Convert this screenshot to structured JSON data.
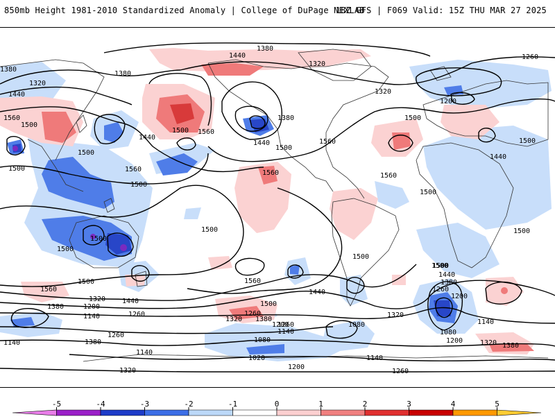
{
  "header": {
    "left_title": "850mb Height 1981-2010 Standardized Anomaly | College of DuPage NEXLAB",
    "right_title": "18Z GFS | F069 Valid: 15Z THU MAR 27 2025"
  },
  "map": {
    "height_labels": [
      "1380",
      "1440",
      "1320",
      "1260",
      "1380",
      "1320",
      "1440",
      "1380",
      "1560",
      "1500",
      "1500",
      "1440",
      "1500",
      "1560",
      "1500",
      "1380",
      "1320",
      "1200",
      "1440",
      "1500",
      "1500",
      "1560",
      "1500",
      "1560",
      "1500",
      "1500",
      "1560",
      "1500",
      "1500",
      "1500",
      "1500",
      "1500",
      "1440",
      "1500",
      "1560",
      "1500",
      "1560",
      "1380",
      "1320",
      "1200",
      "1140",
      "1440",
      "1500",
      "1560",
      "1320",
      "1260",
      "1380",
      "1200",
      "1260",
      "1140",
      "1080",
      "1140",
      "1260",
      "1080",
      "1140",
      "1380",
      "1140",
      "1020",
      "1200",
      "1320",
      "1260",
      "1500",
      "1440",
      "1380",
      "1260",
      "1200",
      "1320",
      "1140",
      "1080",
      "1200",
      "1320",
      "1380",
      "1260",
      "1440"
    ]
  },
  "colorbar": {
    "ticks": [
      "-5",
      "-4",
      "-3",
      "-2",
      "-1",
      "0",
      "1",
      "2",
      "3",
      "4",
      "5"
    ],
    "colors": [
      "#e87de8",
      "#9b20c8",
      "#1e3cc8",
      "#3c6ee6",
      "#bcd8f8",
      "#ffffff",
      "#fccfd0",
      "#f08080",
      "#e03030",
      "#c80000",
      "#ff9900",
      "#ffcc33"
    ]
  },
  "colors": {
    "neg1": "#c8defa",
    "neg2": "#4f7de8",
    "neg3": "#2846c8",
    "neg4": "#7a2bc0",
    "pos1": "#fbd2d2",
    "pos2": "#ef7a7a",
    "pos3": "#d83a3a"
  }
}
